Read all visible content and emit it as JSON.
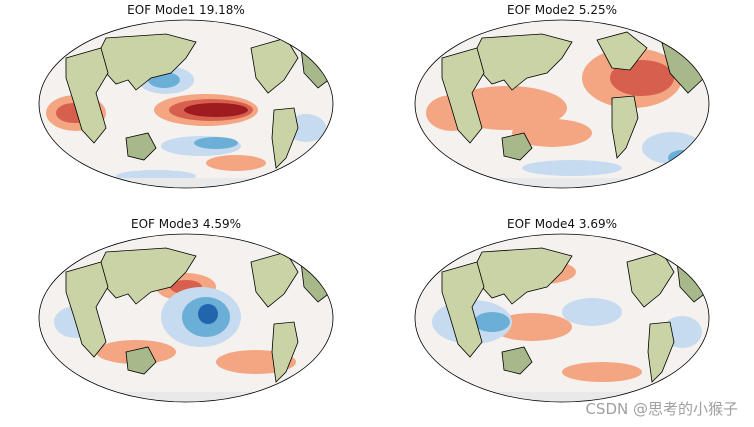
{
  "panels": [
    {
      "id": "mode1",
      "title": "EOF Mode1  19.18%"
    },
    {
      "id": "mode2",
      "title": "EOF Mode2  5.25%"
    },
    {
      "id": "mode3",
      "title": "EOF Mode3  4.59%"
    },
    {
      "id": "mode4",
      "title": "EOF Mode4  3.69%"
    }
  ],
  "watermark": "CSDN @思考的小猴子",
  "colors": {
    "ocean_neutral": "#f4f1ee",
    "land": "#c9d3a6",
    "land_dark": "#a7b98a",
    "ice": "#e9e9e9",
    "warm_strong": "#9e1c20",
    "warm_mid": "#d6604d",
    "warm_light": "#f4a582",
    "cool_light": "#c6dbef",
    "cool_mid": "#6baed6",
    "cool_strong": "#2166ac",
    "coast": "#000000"
  }
}
